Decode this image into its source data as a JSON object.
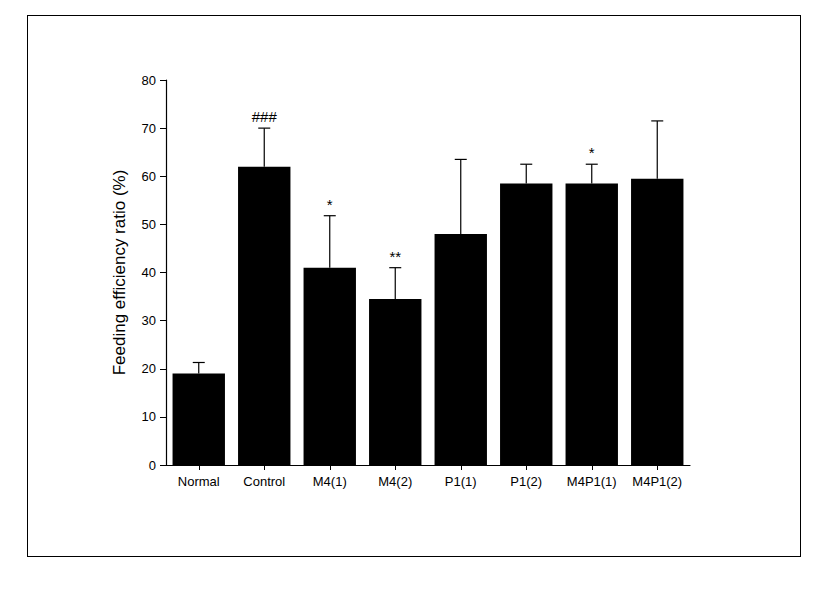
{
  "chart_data": {
    "type": "bar",
    "y_label": "Feeding efficiency ratio (%)",
    "categories": [
      "Normal",
      "Control",
      "M4(1)",
      "M4(2)",
      "P1(1)",
      "P1(2)",
      "M4P1(1)",
      "M4P1(2)"
    ],
    "values": [
      19,
      62,
      41,
      34.5,
      48,
      58.5,
      58.5,
      59.5
    ],
    "error": [
      2.3,
      8,
      10.8,
      6.5,
      15.5,
      4,
      4,
      12
    ],
    "annotations": [
      {
        "category": "Control",
        "text": "###"
      },
      {
        "category": "M4(1)",
        "text": "*"
      },
      {
        "category": "M4(2)",
        "text": "**"
      },
      {
        "category": "M4P1(1)",
        "text": "*"
      }
    ],
    "color": "#000000",
    "ylim": [
      0,
      80
    ],
    "yticks": [
      0,
      10,
      20,
      30,
      40,
      50,
      60,
      70,
      80
    ],
    "grid": false
  }
}
